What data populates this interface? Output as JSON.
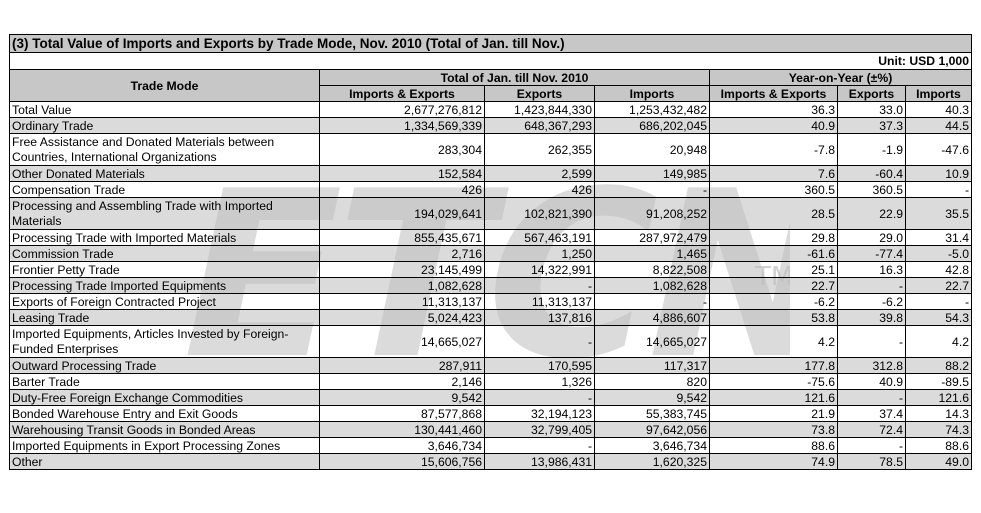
{
  "title": "(3) Total Value of Imports and Exports by Trade Mode, Nov. 2010 (Total of Jan. till Nov.)",
  "unit": "Unit: USD 1,000",
  "headers": {
    "trade_mode": "Trade Mode",
    "group_total": "Total of Jan. till Nov. 2010",
    "group_yoy": "Year-on-Year (±%)",
    "cols": [
      "Imports & Exports",
      "Exports",
      "Imports",
      "Imports & Exports",
      "Exports",
      "Imports"
    ]
  },
  "rows": [
    {
      "label": "Total Value",
      "v": [
        "2,677,276,812",
        "1,423,844,330",
        "1,253,432,482",
        "36.3",
        "33.0",
        "40.3"
      ]
    },
    {
      "label": "Ordinary Trade",
      "v": [
        "1,334,569,339",
        "648,367,293",
        "686,202,045",
        "40.9",
        "37.3",
        "44.5"
      ]
    },
    {
      "label": "Free Assistance and Donated Materials between Countries, International Organizations",
      "v": [
        "283,304",
        "262,355",
        "20,948",
        "-7.8",
        "-1.9",
        "-47.6"
      ]
    },
    {
      "label": "Other Donated Materials",
      "v": [
        "152,584",
        "2,599",
        "149,985",
        "7.6",
        "-60.4",
        "10.9"
      ]
    },
    {
      "label": "Compensation Trade",
      "v": [
        "426",
        "426",
        "-",
        "360.5",
        "360.5",
        "-"
      ]
    },
    {
      "label": "Processing and Assembling Trade with Imported Materials",
      "v": [
        "194,029,641",
        "102,821,390",
        "91,208,252",
        "28.5",
        "22.9",
        "35.5"
      ]
    },
    {
      "label": "Processing Trade with Imported Materials",
      "v": [
        "855,435,671",
        "567,463,191",
        "287,972,479",
        "29.8",
        "29.0",
        "31.4"
      ]
    },
    {
      "label": "Commission Trade",
      "v": [
        "2,716",
        "1,250",
        "1,465",
        "-61.6",
        "-77.4",
        "-5.0"
      ]
    },
    {
      "label": "Frontier Petty Trade",
      "v": [
        "23,145,499",
        "14,322,991",
        "8,822,508",
        "25.1",
        "16.3",
        "42.8"
      ]
    },
    {
      "label": "Processing Trade Imported Equipments",
      "v": [
        "1,082,628",
        "-",
        "1,082,628",
        "22.7",
        "-",
        "22.7"
      ]
    },
    {
      "label": "Exports of Foreign Contracted Project",
      "v": [
        "11,313,137",
        "11,313,137",
        "-",
        "-6.2",
        "-6.2",
        "-"
      ]
    },
    {
      "label": "Leasing Trade",
      "v": [
        "5,024,423",
        "137,816",
        "4,886,607",
        "53.8",
        "39.8",
        "54.3"
      ]
    },
    {
      "label": "Imported Equipments, Articles Invested by Foreign-Funded Enterprises",
      "v": [
        "14,665,027",
        "-",
        "14,665,027",
        "4.2",
        "-",
        "4.2"
      ]
    },
    {
      "label": "Outward Processing Trade",
      "v": [
        "287,911",
        "170,595",
        "117,317",
        "177.8",
        "312.8",
        "88.2"
      ]
    },
    {
      "label": "Barter Trade",
      "v": [
        "2,146",
        "1,326",
        "820",
        "-75.6",
        "40.9",
        "-89.5"
      ]
    },
    {
      "label": "Duty-Free Foreign Exchange Commodities",
      "v": [
        "9,542",
        "-",
        "9,542",
        "121.6",
        "-",
        "121.6"
      ]
    },
    {
      "label": "Bonded Warehouse Entry and Exit Goods",
      "v": [
        "87,577,868",
        "32,194,123",
        "55,383,745",
        "21.9",
        "37.4",
        "14.3"
      ]
    },
    {
      "label": "Warehousing Transit Goods in Bonded Areas",
      "v": [
        "130,441,460",
        "32,799,405",
        "97,642,056",
        "73.8",
        "72.4",
        "74.3"
      ]
    },
    {
      "label": "Imported Equipments in Export Processing Zones",
      "v": [
        "3,646,734",
        "-",
        "3,646,734",
        "88.6",
        "-",
        "88.6"
      ]
    },
    {
      "label": "Other",
      "v": [
        "15,606,756",
        "13,986,431",
        "1,620,325",
        "74.9",
        "78.5",
        "49.0"
      ]
    }
  ],
  "watermark": {
    "logo_text": "ETCN",
    "tm": "TM"
  }
}
